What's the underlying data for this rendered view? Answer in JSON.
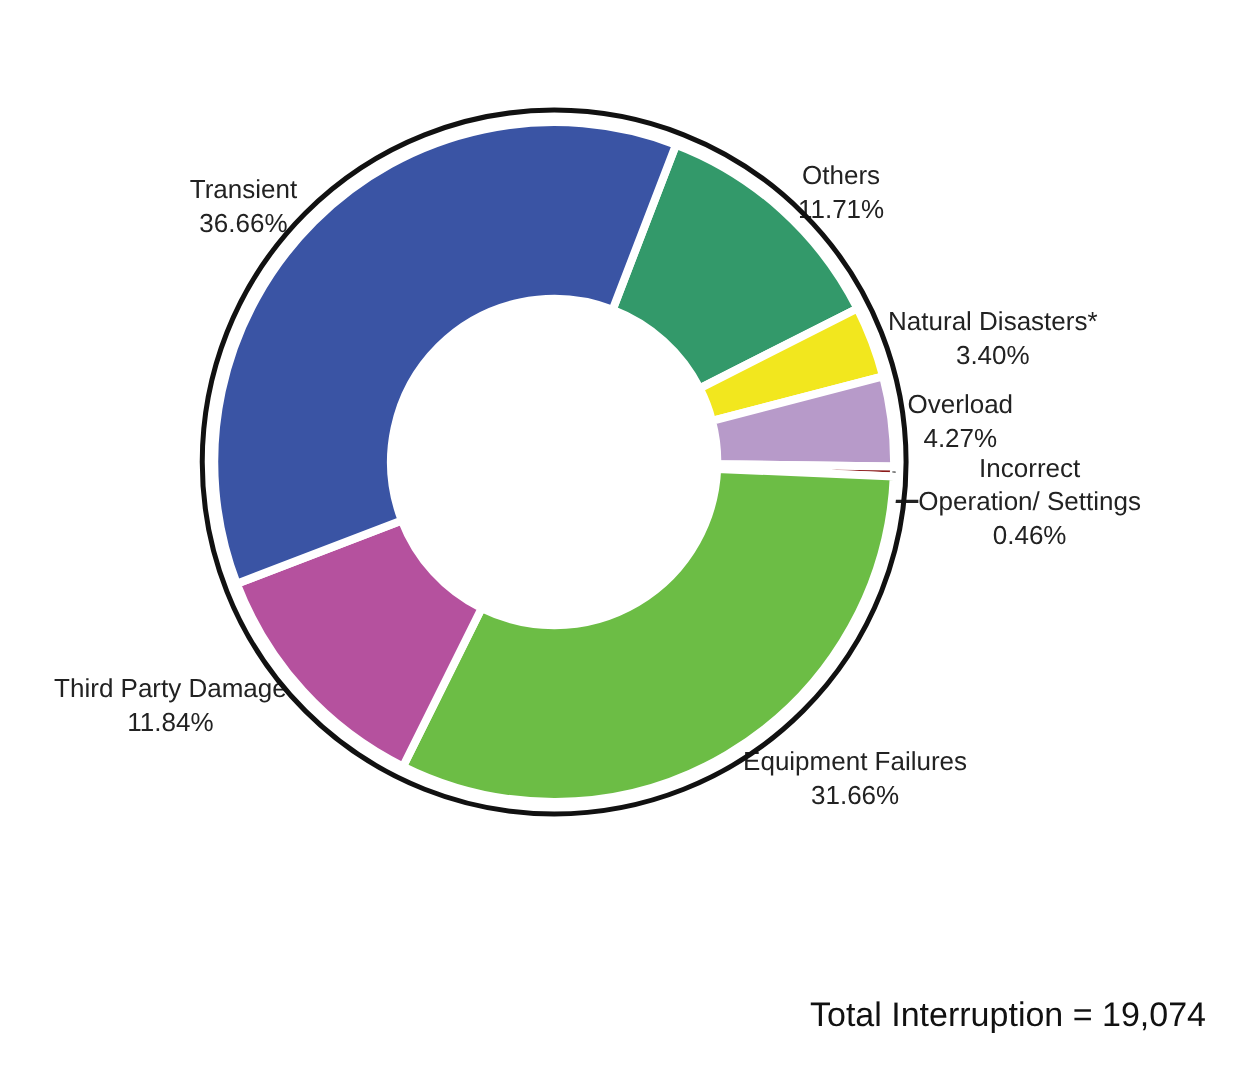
{
  "chart_data": {
    "type": "donut",
    "categories": [
      "Others",
      "Natural Disasters*",
      "Overload",
      "Incorrect Operation/ Settings",
      "Equipment Failures",
      "Third Party Damage",
      "Transient"
    ],
    "values": [
      11.71,
      3.4,
      4.27,
      0.46,
      31.66,
      11.84,
      36.66
    ],
    "value_labels": [
      "11.71%",
      "3.40%",
      "4.27%",
      "0.46%",
      "31.66%",
      "11.84%",
      "36.66%"
    ],
    "colors": [
      "#33996a",
      "#f2e71e",
      "#b79ac9",
      "#8b1a1a",
      "#6cbd45",
      "#b5519e",
      "#3a54a4"
    ],
    "legend": false,
    "annotations": [
      "Total Interruption = 19,074"
    ]
  }
}
